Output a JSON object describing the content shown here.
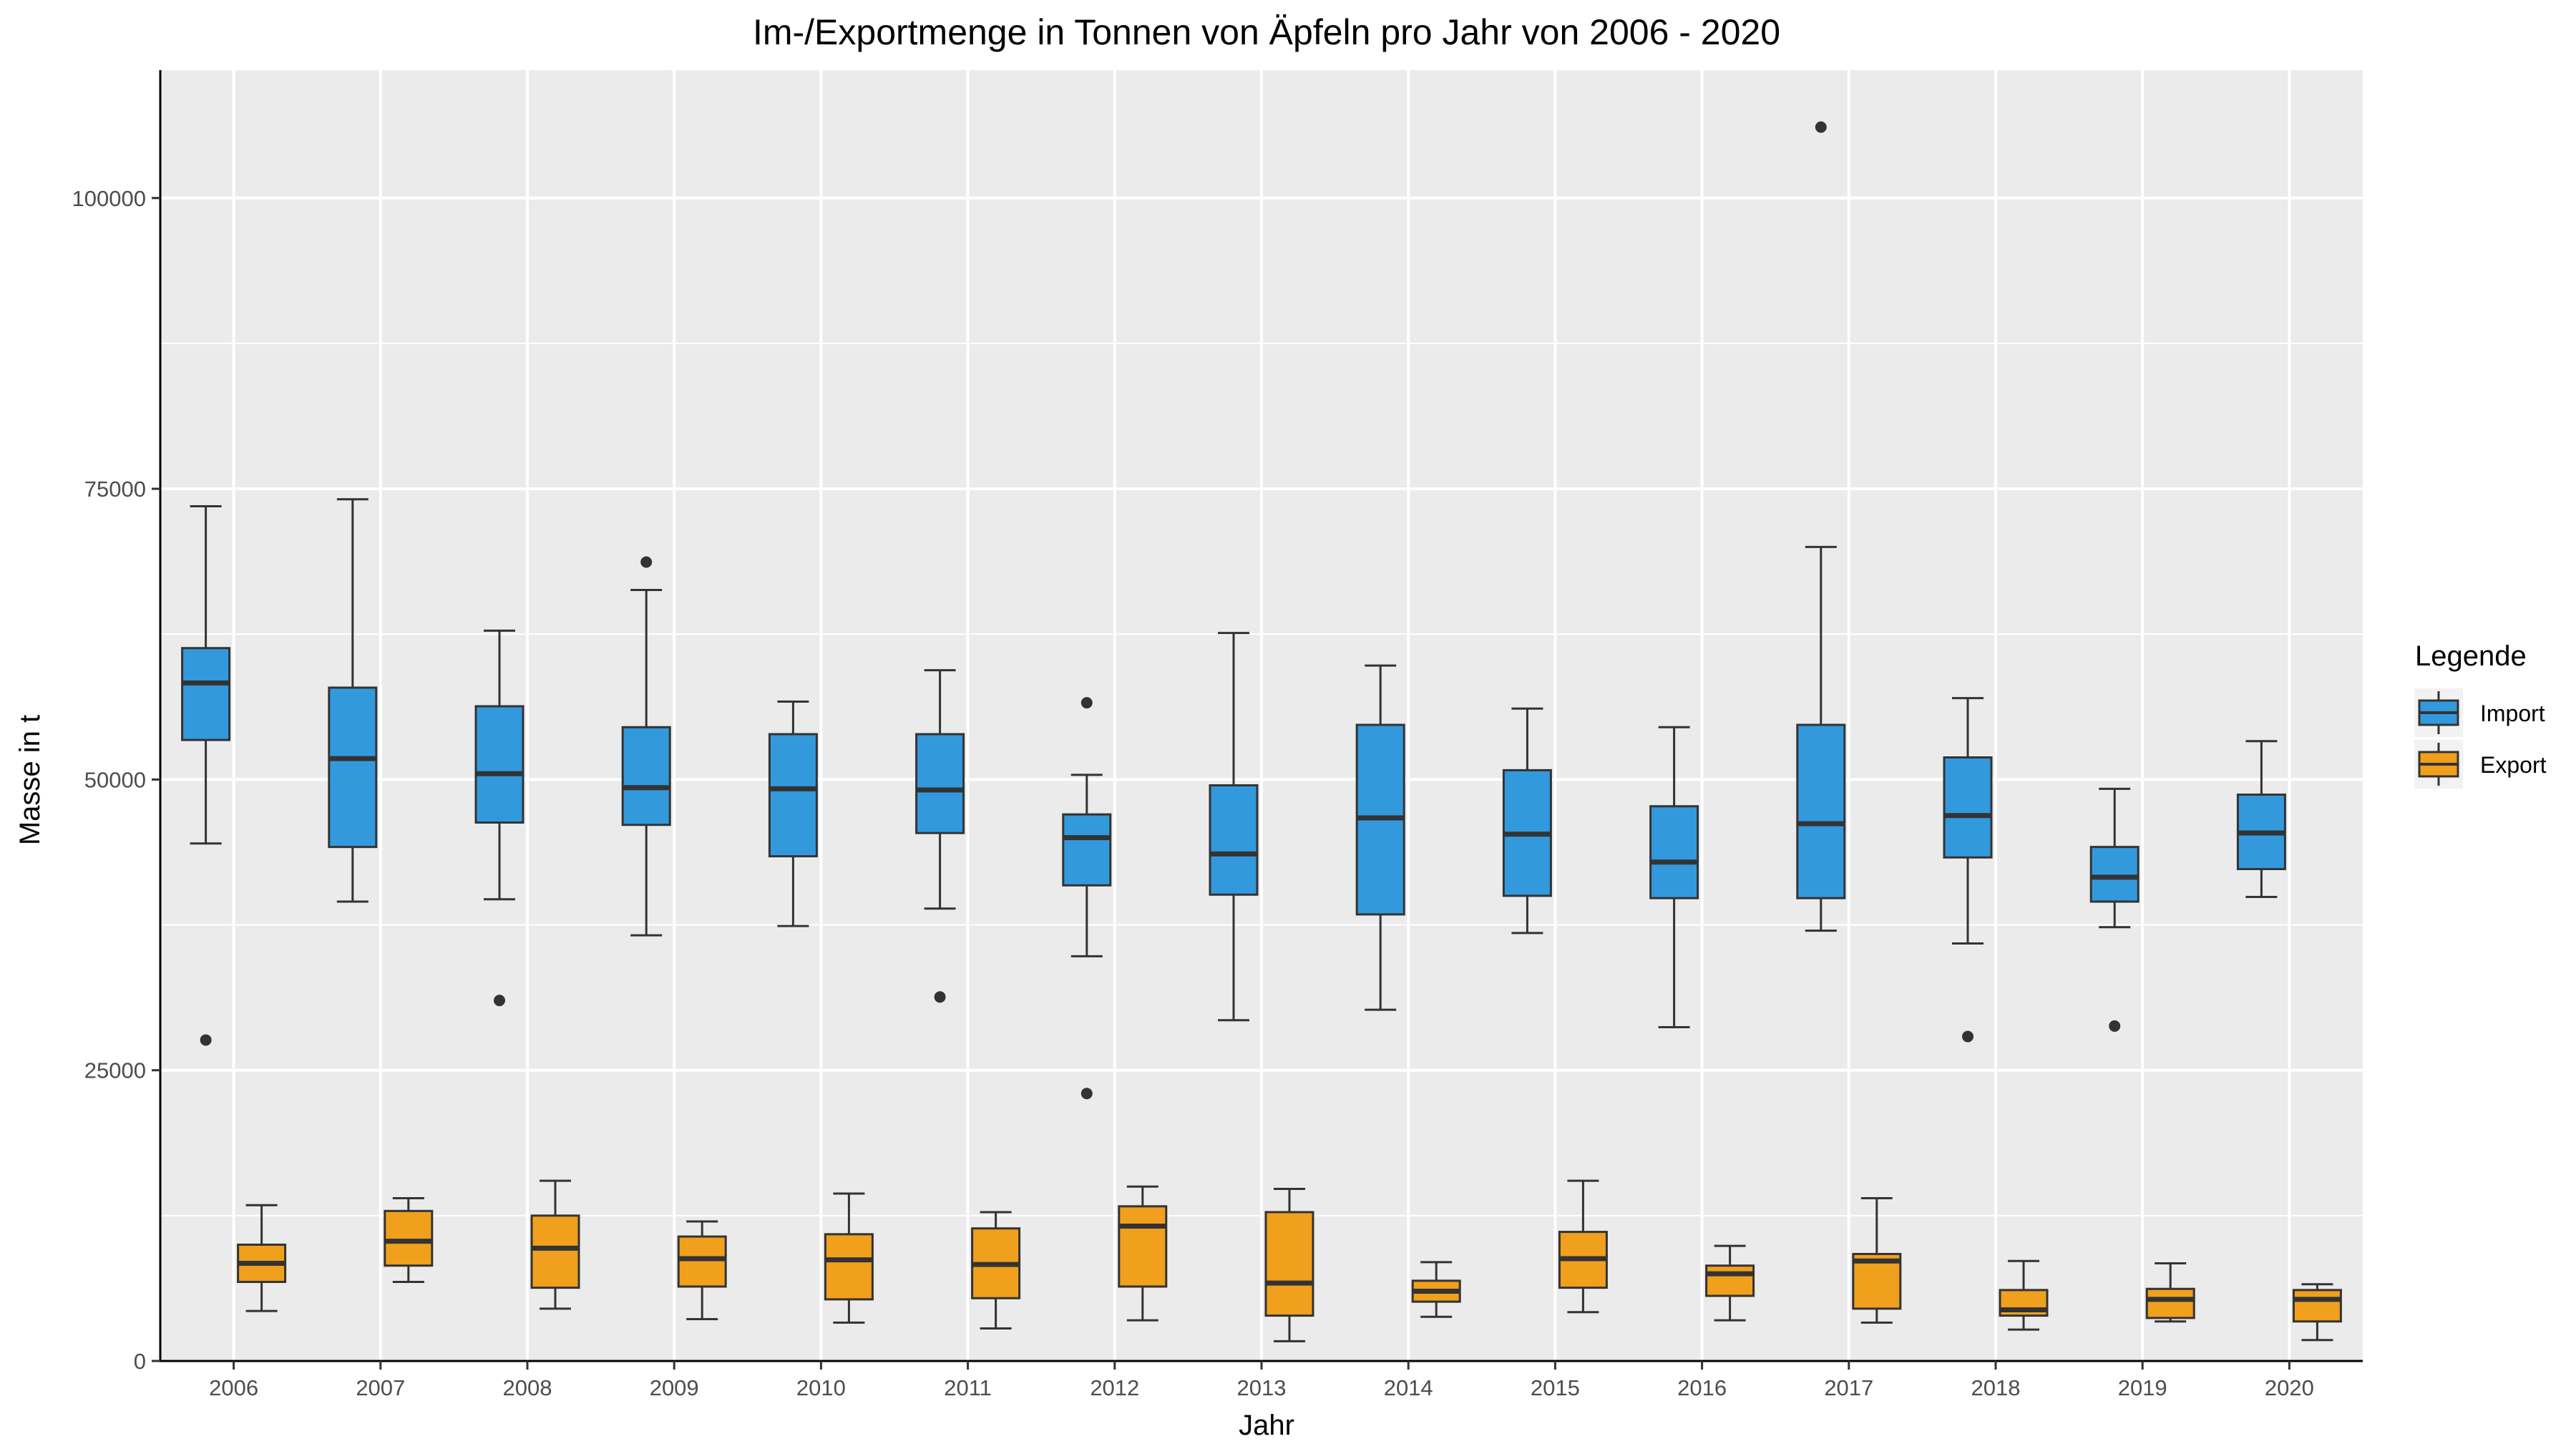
{
  "chart_data": {
    "type": "boxplot",
    "title": "Im-/Exportmenge in Tonnen von Äpfeln pro Jahr von 2006 - 2020",
    "xlabel": "Jahr",
    "ylabel": "Masse in t",
    "ylim": [
      0,
      111000
    ],
    "yticks": [
      0,
      25000,
      50000,
      75000,
      100000
    ],
    "grid": true,
    "legend": {
      "title": "Legende",
      "position": "right"
    },
    "categories": [
      "2006",
      "2007",
      "2008",
      "2009",
      "2010",
      "2011",
      "2012",
      "2013",
      "2014",
      "2015",
      "2016",
      "2017",
      "2018",
      "2019",
      "2020"
    ],
    "series": [
      {
        "name": "Import",
        "color": "#3399dd",
        "boxes": [
          {
            "low": 44500,
            "q1": 53400,
            "median": 58300,
            "q3": 61300,
            "high": 73500,
            "outliers": [
              27600
            ]
          },
          {
            "low": 39500,
            "q1": 44200,
            "median": 51800,
            "q3": 57900,
            "high": 74100,
            "outliers": []
          },
          {
            "low": 39700,
            "q1": 46300,
            "median": 50500,
            "q3": 56300,
            "high": 62800,
            "outliers": [
              31000
            ]
          },
          {
            "low": 36600,
            "q1": 46100,
            "median": 49300,
            "q3": 54500,
            "high": 66300,
            "outliers": [
              68700
            ]
          },
          {
            "low": 37400,
            "q1": 43400,
            "median": 49200,
            "q3": 53900,
            "high": 56700,
            "outliers": []
          },
          {
            "low": 38900,
            "q1": 45400,
            "median": 49100,
            "q3": 53900,
            "high": 59400,
            "outliers": [
              31300
            ]
          },
          {
            "low": 34800,
            "q1": 40900,
            "median": 45000,
            "q3": 47000,
            "high": 50400,
            "outliers": [
              56600,
              23000
            ]
          },
          {
            "low": 29300,
            "q1": 40100,
            "median": 43600,
            "q3": 49500,
            "high": 62600,
            "outliers": []
          },
          {
            "low": 30200,
            "q1": 38400,
            "median": 46700,
            "q3": 54700,
            "high": 59800,
            "outliers": []
          },
          {
            "low": 36800,
            "q1": 40000,
            "median": 45300,
            "q3": 50800,
            "high": 56100,
            "outliers": []
          },
          {
            "low": 28700,
            "q1": 39800,
            "median": 42900,
            "q3": 47700,
            "high": 54500,
            "outliers": []
          },
          {
            "low": 37000,
            "q1": 39800,
            "median": 46200,
            "q3": 54700,
            "high": 70000,
            "outliers": [
              106100
            ]
          },
          {
            "low": 35900,
            "q1": 43300,
            "median": 46900,
            "q3": 51900,
            "high": 57000,
            "outliers": [
              27900
            ]
          },
          {
            "low": 37300,
            "q1": 39500,
            "median": 41600,
            "q3": 44200,
            "high": 49200,
            "outliers": [
              28800
            ]
          },
          {
            "low": 39900,
            "q1": 42300,
            "median": 45400,
            "q3": 48700,
            "high": 53300,
            "outliers": []
          }
        ]
      },
      {
        "name": "Export",
        "color": "#f0a01c",
        "boxes": [
          {
            "low": 4300,
            "q1": 6800,
            "median": 8400,
            "q3": 10000,
            "high": 13400,
            "outliers": []
          },
          {
            "low": 6800,
            "q1": 8200,
            "median": 10300,
            "q3": 12900,
            "high": 14000,
            "outliers": []
          },
          {
            "low": 4500,
            "q1": 6300,
            "median": 9700,
            "q3": 12500,
            "high": 15500,
            "outliers": []
          },
          {
            "low": 3600,
            "q1": 6400,
            "median": 8800,
            "q3": 10700,
            "high": 12000,
            "outliers": []
          },
          {
            "low": 3300,
            "q1": 5300,
            "median": 8700,
            "q3": 10900,
            "high": 14400,
            "outliers": []
          },
          {
            "low": 2800,
            "q1": 5400,
            "median": 8300,
            "q3": 11400,
            "high": 12800,
            "outliers": []
          },
          {
            "low": 3500,
            "q1": 6400,
            "median": 11600,
            "q3": 13300,
            "high": 15000,
            "outliers": []
          },
          {
            "low": 1700,
            "q1": 3900,
            "median": 6700,
            "q3": 12800,
            "high": 14800,
            "outliers": []
          },
          {
            "low": 3800,
            "q1": 5100,
            "median": 6000,
            "q3": 6900,
            "high": 8500,
            "outliers": []
          },
          {
            "low": 4200,
            "q1": 6300,
            "median": 8800,
            "q3": 11100,
            "high": 15500,
            "outliers": []
          },
          {
            "low": 3500,
            "q1": 5600,
            "median": 7500,
            "q3": 8200,
            "high": 9900,
            "outliers": []
          },
          {
            "low": 3300,
            "q1": 4500,
            "median": 8600,
            "q3": 9200,
            "high": 14000,
            "outliers": []
          },
          {
            "low": 2700,
            "q1": 3900,
            "median": 4400,
            "q3": 6100,
            "high": 8600,
            "outliers": []
          },
          {
            "low": 3400,
            "q1": 3700,
            "median": 5300,
            "q3": 6200,
            "high": 8400,
            "outliers": []
          },
          {
            "low": 1800,
            "q1": 3400,
            "median": 5300,
            "q3": 6100,
            "high": 6600,
            "outliers": []
          }
        ]
      }
    ]
  },
  "colors": {
    "panel": "#ebebeb",
    "grid": "#ffffff",
    "line": "#333333"
  }
}
